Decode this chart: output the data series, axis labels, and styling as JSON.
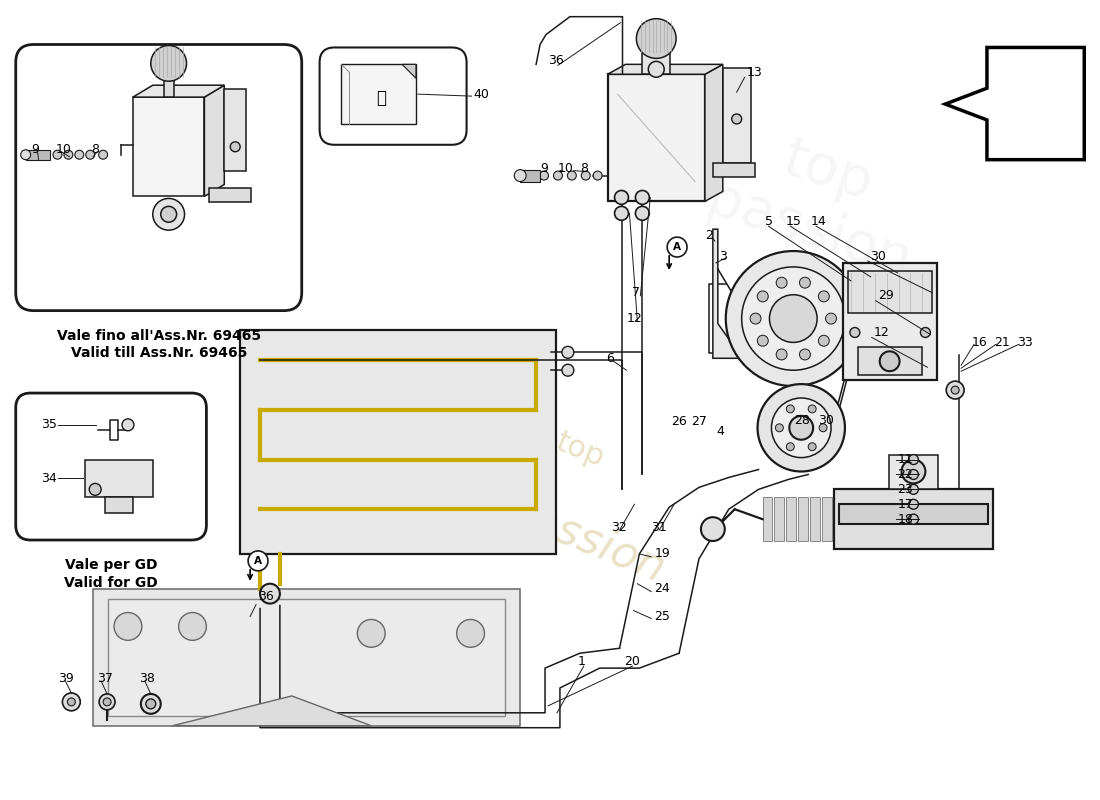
{
  "bg": "#ffffff",
  "lc": "#1a1a1a",
  "lc_light": "#888888",
  "tube_color": "#c8aa00",
  "wm_color1": "#c8b870",
  "wm_color2": "#c0a855",
  "box1_text1": "Vale fino all'Ass.Nr. 69465",
  "box1_text2": "Valid till Ass.Nr. 69465",
  "box2_text1": "Vale per GD",
  "box2_text2": "Valid for GD"
}
